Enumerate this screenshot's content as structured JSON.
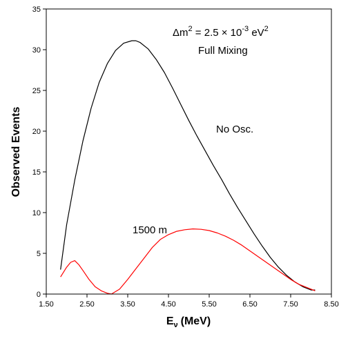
{
  "chart_data": {
    "type": "line",
    "xlabel": "E",
    "xlabel_sub": "ν",
    "xlabel_unit": "(MeV)",
    "ylabel": "Observed Events",
    "xlim": [
      1.5,
      8.5
    ],
    "ylim": [
      0,
      35
    ],
    "xticks": [
      "1.50",
      "2.50",
      "3.50",
      "4.50",
      "5.50",
      "6.50",
      "7.50",
      "8.50"
    ],
    "yticks": [
      "0",
      "5",
      "10",
      "15",
      "20",
      "25",
      "30",
      "35"
    ],
    "annotation": {
      "line1_prefix": "Δm",
      "line1_sup1": "2",
      "line1_mid": " = 2.5 × 10",
      "line1_sup2": "-3",
      "line1_unit": " eV",
      "line1_sup3": "2",
      "line2": "Full Mixing"
    },
    "grid": false,
    "series": [
      {
        "name": "No Osc.",
        "color": "#000000",
        "x": [
          1.85,
          2.0,
          2.2,
          2.4,
          2.6,
          2.8,
          3.0,
          3.2,
          3.4,
          3.6,
          3.7,
          3.8,
          4.0,
          4.2,
          4.4,
          4.6,
          4.8,
          5.0,
          5.2,
          5.4,
          5.6,
          5.8,
          6.0,
          6.2,
          6.4,
          6.6,
          6.8,
          7.0,
          7.2,
          7.4,
          7.6,
          7.8,
          8.0,
          8.1
        ],
        "y": [
          3.0,
          8.5,
          14.0,
          18.8,
          22.8,
          26.0,
          28.3,
          29.9,
          30.8,
          31.1,
          31.1,
          30.9,
          30.1,
          28.8,
          27.2,
          25.3,
          23.3,
          21.3,
          19.4,
          17.6,
          15.8,
          14.1,
          12.3,
          10.6,
          9.0,
          7.4,
          5.9,
          4.5,
          3.3,
          2.3,
          1.5,
          0.9,
          0.5,
          0.5
        ]
      },
      {
        "name": "1500 m",
        "color": "#ff0000",
        "x": [
          1.85,
          2.0,
          2.1,
          2.2,
          2.3,
          2.4,
          2.55,
          2.7,
          2.85,
          3.0,
          3.1,
          3.3,
          3.5,
          3.7,
          3.9,
          4.1,
          4.3,
          4.5,
          4.7,
          4.9,
          5.1,
          5.3,
          5.5,
          5.7,
          5.9,
          6.1,
          6.3,
          6.5,
          6.7,
          6.9,
          7.1,
          7.3,
          7.5,
          7.7,
          7.9,
          8.1
        ],
        "y": [
          2.1,
          3.3,
          3.9,
          4.1,
          3.6,
          2.9,
          1.8,
          0.9,
          0.4,
          0.1,
          0.0,
          0.6,
          1.8,
          3.1,
          4.4,
          5.7,
          6.7,
          7.3,
          7.7,
          7.9,
          8.0,
          7.95,
          7.8,
          7.5,
          7.1,
          6.6,
          6.0,
          5.3,
          4.6,
          3.9,
          3.2,
          2.5,
          1.8,
          1.2,
          0.8,
          0.4
        ]
      }
    ]
  }
}
